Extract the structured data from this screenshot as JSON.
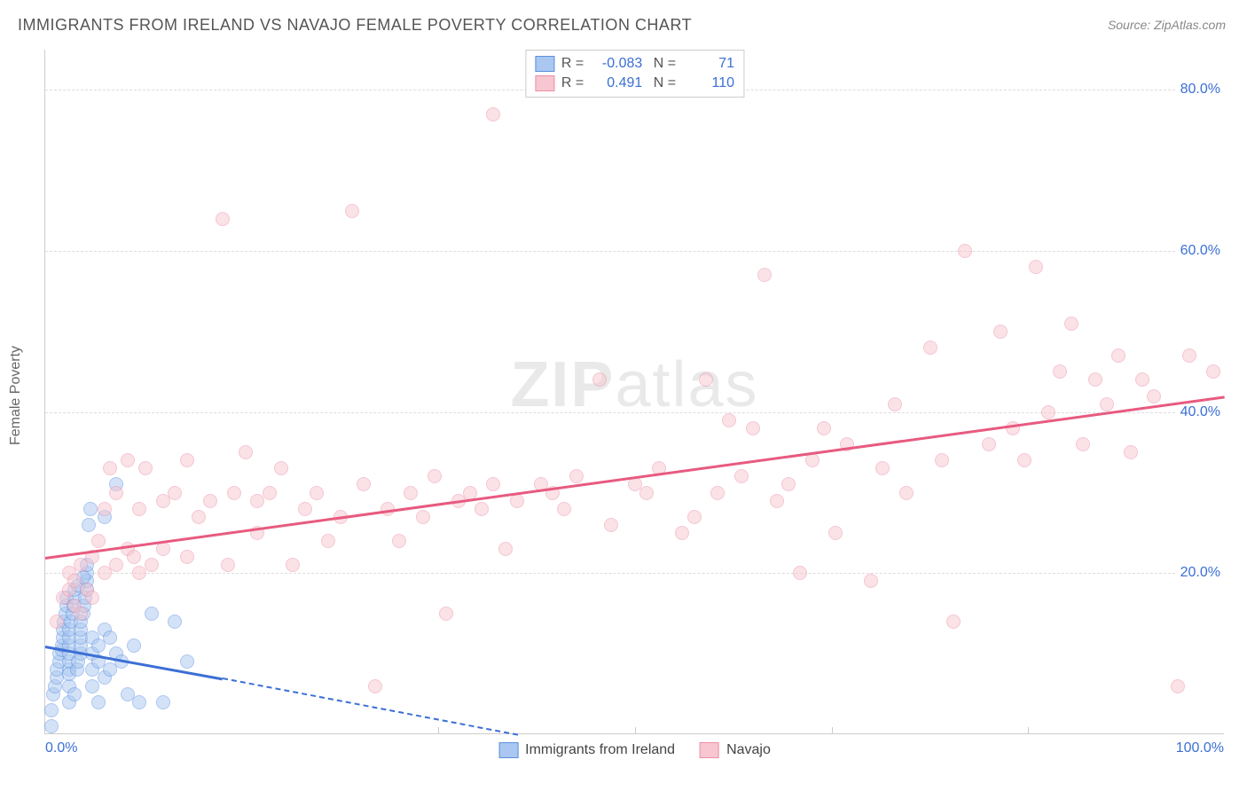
{
  "title": "IMMIGRANTS FROM IRELAND VS NAVAJO FEMALE POVERTY CORRELATION CHART",
  "source": "Source: ZipAtlas.com",
  "ylabel": "Female Poverty",
  "watermark_a": "ZIP",
  "watermark_b": "atlas",
  "chart": {
    "type": "scatter",
    "xlim": [
      0,
      100
    ],
    "ylim": [
      0,
      85
    ],
    "x_tick_left": "0.0%",
    "x_tick_right": "100.0%",
    "x_center_ticks": [
      33.3,
      50.0,
      66.7,
      83.3
    ],
    "y_ticks": [
      {
        "v": 20,
        "label": "20.0%"
      },
      {
        "v": 40,
        "label": "40.0%"
      },
      {
        "v": 60,
        "label": "60.0%"
      },
      {
        "v": 80,
        "label": "80.0%"
      }
    ],
    "background_color": "#ffffff",
    "grid_color": "#dddddd",
    "axis_color": "#cccccc",
    "tick_font_color": "#3b6fd4",
    "marker_radius": 8,
    "marker_opacity": 0.5,
    "marker_border_width": 1.5,
    "trend_line_width": 3
  },
  "series": [
    {
      "key": "ireland",
      "label": "Immigrants from Ireland",
      "fill": "#a9c7f0",
      "stroke": "#5b8fe0",
      "line_color": "#3b6fd4",
      "R": "-0.083",
      "N": "71",
      "trend": {
        "x1": 0,
        "y1": 11,
        "x2": 15,
        "y2": 7,
        "dash_to_x": 40,
        "dash_to_y": 0
      },
      "points": [
        [
          0.5,
          1
        ],
        [
          0.5,
          3
        ],
        [
          0.7,
          5
        ],
        [
          0.8,
          6
        ],
        [
          1,
          7
        ],
        [
          1,
          8
        ],
        [
          1.2,
          9
        ],
        [
          1.2,
          10
        ],
        [
          1.4,
          10.5
        ],
        [
          1.4,
          11
        ],
        [
          1.5,
          12
        ],
        [
          1.5,
          13
        ],
        [
          1.6,
          14
        ],
        [
          1.7,
          15
        ],
        [
          1.8,
          16
        ],
        [
          1.8,
          17
        ],
        [
          2,
          4
        ],
        [
          2,
          6
        ],
        [
          2,
          8
        ],
        [
          2,
          9
        ],
        [
          2,
          10
        ],
        [
          2,
          11
        ],
        [
          2,
          12
        ],
        [
          2,
          13
        ],
        [
          2,
          7.5
        ],
        [
          2.2,
          14
        ],
        [
          2.3,
          15
        ],
        [
          2.4,
          16
        ],
        [
          2.5,
          17
        ],
        [
          2.5,
          18
        ],
        [
          2.5,
          5
        ],
        [
          2.7,
          8
        ],
        [
          2.8,
          9
        ],
        [
          3,
          10
        ],
        [
          3,
          11
        ],
        [
          3,
          12
        ],
        [
          3,
          13
        ],
        [
          3,
          14
        ],
        [
          3.2,
          15
        ],
        [
          3.3,
          16
        ],
        [
          3.4,
          17
        ],
        [
          3.5,
          18
        ],
        [
          3.5,
          19
        ],
        [
          3.5,
          20
        ],
        [
          3.5,
          21
        ],
        [
          3.7,
          26
        ],
        [
          3.8,
          28
        ],
        [
          4,
          6
        ],
        [
          4,
          8
        ],
        [
          4,
          10
        ],
        [
          4,
          12
        ],
        [
          4.5,
          4
        ],
        [
          4.5,
          9
        ],
        [
          4.5,
          11
        ],
        [
          5,
          7
        ],
        [
          5,
          13
        ],
        [
          5,
          27
        ],
        [
          5.5,
          8
        ],
        [
          5.5,
          12
        ],
        [
          6,
          31
        ],
        [
          6,
          10
        ],
        [
          6.5,
          9
        ],
        [
          7,
          5
        ],
        [
          7.5,
          11
        ],
        [
          8,
          4
        ],
        [
          9,
          15
        ],
        [
          10,
          4
        ],
        [
          11,
          14
        ],
        [
          12,
          9
        ],
        [
          2.8,
          18.5
        ],
        [
          3.2,
          19.5
        ]
      ]
    },
    {
      "key": "navajo",
      "label": "Navajo",
      "fill": "#f7c6d0",
      "stroke": "#ec8fa6",
      "line_color": "#e85a7f",
      "R": "0.491",
      "N": "110",
      "trend": {
        "x1": 0,
        "y1": 22,
        "x2": 100,
        "y2": 42
      },
      "points": [
        [
          1,
          14
        ],
        [
          1.5,
          17
        ],
        [
          2,
          18
        ],
        [
          2,
          20
        ],
        [
          2.5,
          16
        ],
        [
          2.5,
          19
        ],
        [
          3,
          15
        ],
        [
          3,
          21
        ],
        [
          3.5,
          18
        ],
        [
          4,
          22
        ],
        [
          4,
          17
        ],
        [
          4.5,
          24
        ],
        [
          5,
          20
        ],
        [
          5,
          28
        ],
        [
          5.5,
          33
        ],
        [
          6,
          21
        ],
        [
          6,
          30
        ],
        [
          7,
          23
        ],
        [
          7,
          34
        ],
        [
          7.5,
          22
        ],
        [
          8,
          20
        ],
        [
          8,
          28
        ],
        [
          8.5,
          33
        ],
        [
          9,
          21
        ],
        [
          10,
          29
        ],
        [
          10,
          23
        ],
        [
          11,
          30
        ],
        [
          12,
          22
        ],
        [
          12,
          34
        ],
        [
          13,
          27
        ],
        [
          14,
          29
        ],
        [
          15,
          64
        ],
        [
          15.5,
          21
        ],
        [
          16,
          30
        ],
        [
          17,
          35
        ],
        [
          18,
          25
        ],
        [
          18,
          29
        ],
        [
          19,
          30
        ],
        [
          20,
          33
        ],
        [
          21,
          21
        ],
        [
          22,
          28
        ],
        [
          23,
          30
        ],
        [
          24,
          24
        ],
        [
          25,
          27
        ],
        [
          26,
          65
        ],
        [
          27,
          31
        ],
        [
          28,
          6
        ],
        [
          29,
          28
        ],
        [
          30,
          24
        ],
        [
          31,
          30
        ],
        [
          32,
          27
        ],
        [
          33,
          32
        ],
        [
          34,
          15
        ],
        [
          35,
          29
        ],
        [
          36,
          30
        ],
        [
          37,
          28
        ],
        [
          38,
          31
        ],
        [
          38,
          77
        ],
        [
          39,
          23
        ],
        [
          40,
          29
        ],
        [
          42,
          31
        ],
        [
          43,
          30
        ],
        [
          44,
          28
        ],
        [
          45,
          32
        ],
        [
          47,
          44
        ],
        [
          48,
          26
        ],
        [
          50,
          31
        ],
        [
          51,
          30
        ],
        [
          52,
          33
        ],
        [
          54,
          25
        ],
        [
          55,
          27
        ],
        [
          56,
          44
        ],
        [
          57,
          30
        ],
        [
          58,
          39
        ],
        [
          59,
          32
        ],
        [
          60,
          38
        ],
        [
          61,
          57
        ],
        [
          62,
          29
        ],
        [
          63,
          31
        ],
        [
          64,
          20
        ],
        [
          65,
          34
        ],
        [
          66,
          38
        ],
        [
          67,
          25
        ],
        [
          68,
          36
        ],
        [
          70,
          19
        ],
        [
          71,
          33
        ],
        [
          72,
          41
        ],
        [
          73,
          30
        ],
        [
          75,
          48
        ],
        [
          76,
          34
        ],
        [
          77,
          14
        ],
        [
          78,
          60
        ],
        [
          80,
          36
        ],
        [
          81,
          50
        ],
        [
          82,
          38
        ],
        [
          83,
          34
        ],
        [
          84,
          58
        ],
        [
          85,
          40
        ],
        [
          86,
          45
        ],
        [
          87,
          51
        ],
        [
          88,
          36
        ],
        [
          89,
          44
        ],
        [
          90,
          41
        ],
        [
          91,
          47
        ],
        [
          92,
          35
        ],
        [
          93,
          44
        ],
        [
          94,
          42
        ],
        [
          96,
          6
        ],
        [
          97,
          47
        ],
        [
          99,
          45
        ]
      ]
    }
  ]
}
